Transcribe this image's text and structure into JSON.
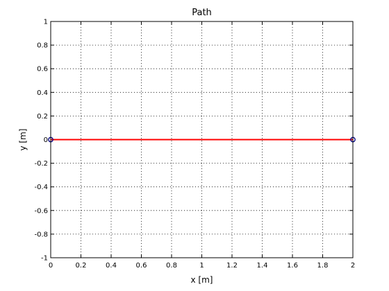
{
  "chart_data": {
    "type": "line",
    "title": "Path",
    "xlabel": "x [m]",
    "ylabel": "y [m]",
    "xlim": [
      0,
      2
    ],
    "ylim": [
      -1,
      1
    ],
    "grid": true,
    "x_ticks": [
      "0",
      "0.2",
      "0.4",
      "0.6",
      "0.8",
      "1",
      "1.2",
      "1.4",
      "1.6",
      "1.8",
      "2"
    ],
    "y_ticks": [
      "-1",
      "-0.8",
      "-0.6",
      "-0.4",
      "-0.2",
      "0",
      "0.2",
      "0.4",
      "0.6",
      "0.8",
      "1"
    ],
    "series": [
      {
        "x": [
          0,
          2
        ],
        "y": [
          0,
          0
        ],
        "color": "#ff0000",
        "style": "line"
      },
      {
        "x": [
          0,
          2
        ],
        "y": [
          0,
          0
        ],
        "color": "#000080",
        "style": "marker-circle"
      }
    ]
  }
}
